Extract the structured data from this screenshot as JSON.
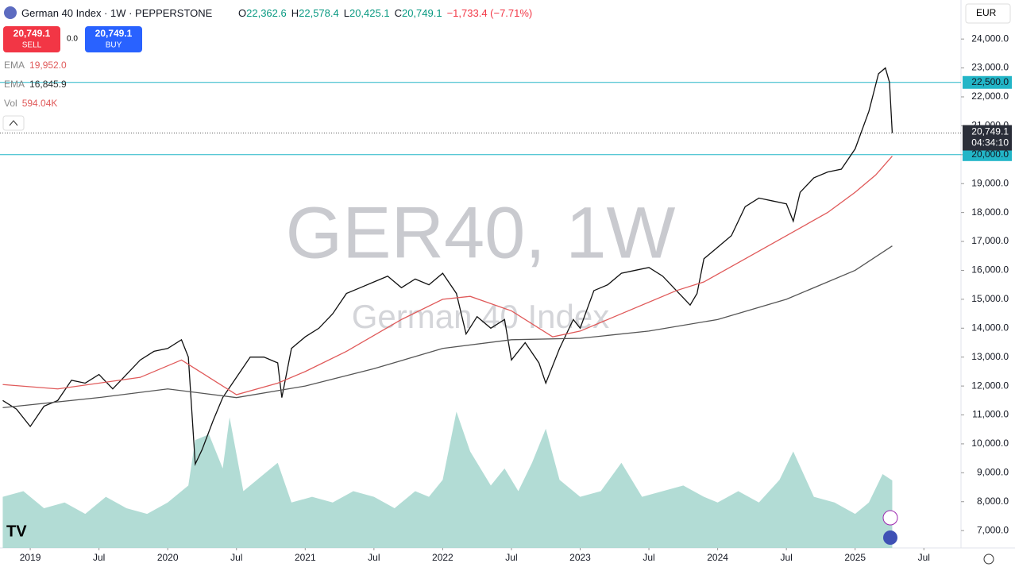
{
  "header": {
    "symbol": "German 40 Index · 1W · PEPPERSTONE",
    "ohlc": [
      "O",
      "22,362.6",
      "H",
      "22,578.4",
      "L",
      "20,425.1",
      "C",
      "20,749.1",
      "−1,733.4 (−7.71%)"
    ],
    "sell_price": "20,749.1",
    "sell": "SELL",
    "spread": "0.0",
    "buy_price": "20,749.1",
    "buy": "BUY",
    "currency": "EUR",
    "indicators": [
      {
        "name": "EMA",
        "value": "19,952.0"
      },
      {
        "name": "EMA",
        "value": "16,845.9"
      },
      {
        "name": "Vol",
        "value": "594.04K"
      }
    ],
    "watermark": "GER40, 1W",
    "watermark_sub": "German 40 Index",
    "countdown": "04:34:10"
  },
  "chart_data": {
    "type": "line",
    "xlim": [
      2018.78,
      2025.77
    ],
    "ylim": [
      6400,
      25350
    ],
    "vlim": [
      0,
      4825
    ],
    "xticks": [
      {
        "value": 2019,
        "label": "2019"
      },
      {
        "value": 2019.5,
        "label": "Jul"
      },
      {
        "value": 2020,
        "label": "2020"
      },
      {
        "value": 2020.5,
        "label": "Jul"
      },
      {
        "value": 2021,
        "label": "2021"
      },
      {
        "value": 2021.5,
        "label": "Jul"
      },
      {
        "value": 2022,
        "label": "2022"
      },
      {
        "value": 2022.5,
        "label": "Jul"
      },
      {
        "value": 2023,
        "label": "2023"
      },
      {
        "value": 2023.5,
        "label": "Jul"
      },
      {
        "value": 2024,
        "label": "2024"
      },
      {
        "value": 2024.5,
        "label": "Jul"
      },
      {
        "value": 2025,
        "label": "2025"
      },
      {
        "value": 2025.5,
        "label": "Jul"
      }
    ],
    "yticks": [
      {
        "value": 7000,
        "label": "7,000.0"
      },
      {
        "value": 8000,
        "label": "8,000.0"
      },
      {
        "value": 9000,
        "label": "9,000.0"
      },
      {
        "value": 10000,
        "label": "10,000.0"
      },
      {
        "value": 11000,
        "label": "11,000.0"
      },
      {
        "value": 12000,
        "label": "12,000.0"
      },
      {
        "value": 13000,
        "label": "13,000.0"
      },
      {
        "value": 14000,
        "label": "14,000.0"
      },
      {
        "value": 15000,
        "label": "15,000.0"
      },
      {
        "value": 16000,
        "label": "16,000.0"
      },
      {
        "value": 17000,
        "label": "17,000.0"
      },
      {
        "value": 18000,
        "label": "18,000.0"
      },
      {
        "value": 19000,
        "label": "19,000.0"
      },
      {
        "value": 20000,
        "label": "20,000.0"
      },
      {
        "value": 21000,
        "label": "21,000.0"
      },
      {
        "value": 22000,
        "label": "22,000.0"
      },
      {
        "value": 23000,
        "label": "23,000.0"
      },
      {
        "value": 24000,
        "label": "24,000.0"
      }
    ],
    "hlines": [
      {
        "value": 22500,
        "label": "22,500.0",
        "color": "#22b5c7"
      },
      {
        "value": 20000,
        "label": "20,000.0",
        "color": "#22b5c7"
      }
    ],
    "last": {
      "value": 20749.1,
      "label": "20,749.1"
    },
    "series": [
      {
        "color": "#111111",
        "x": [
          2018.8,
          2018.9,
          2019.0,
          2019.1,
          2019.2,
          2019.3,
          2019.4,
          2019.5,
          2019.6,
          2019.7,
          2019.8,
          2019.9,
          2020.0,
          2020.1,
          2020.15,
          2020.2,
          2020.25,
          2020.33,
          2020.4,
          2020.5,
          2020.6,
          2020.7,
          2020.8,
          2020.83,
          2020.9,
          2021.0,
          2021.1,
          2021.2,
          2021.3,
          2021.4,
          2021.5,
          2021.6,
          2021.7,
          2021.8,
          2021.9,
          2022.0,
          2022.1,
          2022.17,
          2022.25,
          2022.35,
          2022.45,
          2022.5,
          2022.6,
          2022.7,
          2022.75,
          2022.85,
          2022.95,
          2023.0,
          2023.1,
          2023.2,
          2023.3,
          2023.4,
          2023.5,
          2023.6,
          2023.7,
          2023.8,
          2023.85,
          2023.9,
          2024.0,
          2024.1,
          2024.2,
          2024.3,
          2024.4,
          2024.5,
          2024.55,
          2024.6,
          2024.7,
          2024.8,
          2024.9,
          2025.0,
          2025.1,
          2025.17,
          2025.22,
          2025.25,
          2025.27
        ],
        "values": [
          11500,
          11200,
          10600,
          11300,
          11500,
          12200,
          12100,
          12400,
          11900,
          12400,
          12900,
          13200,
          13300,
          13600,
          13000,
          9300,
          9800,
          10800,
          11600,
          12300,
          13000,
          13000,
          12800,
          11600,
          13300,
          13700,
          14000,
          14500,
          15200,
          15400,
          15600,
          15800,
          15400,
          15700,
          15500,
          15900,
          15200,
          13800,
          14400,
          14000,
          14300,
          12900,
          13500,
          12800,
          12100,
          13300,
          14300,
          14000,
          15300,
          15500,
          15900,
          16000,
          16100,
          15800,
          15300,
          14800,
          15200,
          16400,
          16800,
          17200,
          18200,
          18500,
          18400,
          18300,
          17700,
          18700,
          19200,
          19400,
          19500,
          20200,
          21500,
          22800,
          23000,
          22500,
          20749.1
        ]
      },
      {
        "name": "EMA",
        "color": "#e05a5a",
        "x": [
          2018.8,
          2019.2,
          2019.8,
          2020.1,
          2020.3,
          2020.5,
          2020.8,
          2021.0,
          2021.3,
          2021.7,
          2022.0,
          2022.2,
          2022.5,
          2022.8,
          2023.0,
          2023.3,
          2023.7,
          2023.9,
          2024.2,
          2024.5,
          2024.8,
          2025.0,
          2025.15,
          2025.27
        ],
        "values": [
          12050,
          11900,
          12300,
          12900,
          12300,
          11700,
          12100,
          12500,
          13200,
          14300,
          15000,
          15100,
          14600,
          13700,
          13900,
          14500,
          15300,
          15600,
          16400,
          17200,
          18000,
          18700,
          19300,
          19952
        ]
      },
      {
        "name": "EMA",
        "color": "#555555",
        "x": [
          2018.8,
          2019.0,
          2019.5,
          2020.0,
          2020.5,
          2021.0,
          2021.5,
          2022.0,
          2022.5,
          2023.0,
          2023.5,
          2024.0,
          2024.5,
          2025.0,
          2025.27
        ],
        "values": [
          11250,
          11350,
          11600,
          11900,
          11600,
          12000,
          12600,
          13300,
          13600,
          13650,
          13900,
          14300,
          15000,
          16000,
          16845.9
        ]
      }
    ],
    "volume": {
      "name": "Vol",
      "color": "#9fd3cb",
      "x": [
        2018.8,
        2018.95,
        2019.1,
        2019.25,
        2019.4,
        2019.55,
        2019.7,
        2019.85,
        2020.0,
        2020.15,
        2020.2,
        2020.3,
        2020.4,
        2020.45,
        2020.55,
        2020.7,
        2020.8,
        2020.9,
        2021.05,
        2021.2,
        2021.35,
        2021.5,
        2021.65,
        2021.8,
        2021.9,
        2022.0,
        2022.1,
        2022.2,
        2022.35,
        2022.45,
        2022.55,
        2022.65,
        2022.75,
        2022.85,
        2023.0,
        2023.15,
        2023.3,
        2023.45,
        2023.6,
        2023.75,
        2023.9,
        2024.0,
        2024.15,
        2024.3,
        2024.45,
        2024.55,
        2024.7,
        2024.85,
        2025.0,
        2025.1,
        2025.2,
        2025.27
      ],
      "values": [
        450,
        500,
        350,
        400,
        300,
        450,
        350,
        300,
        400,
        550,
        950,
        1000,
        700,
        1150,
        500,
        650,
        750,
        400,
        450,
        400,
        500,
        450,
        350,
        500,
        450,
        600,
        1200,
        850,
        550,
        700,
        500,
        750,
        1050,
        600,
        450,
        500,
        750,
        450,
        500,
        550,
        450,
        400,
        500,
        400,
        600,
        850,
        450,
        400,
        300,
        400,
        650,
        594.04
      ]
    }
  }
}
